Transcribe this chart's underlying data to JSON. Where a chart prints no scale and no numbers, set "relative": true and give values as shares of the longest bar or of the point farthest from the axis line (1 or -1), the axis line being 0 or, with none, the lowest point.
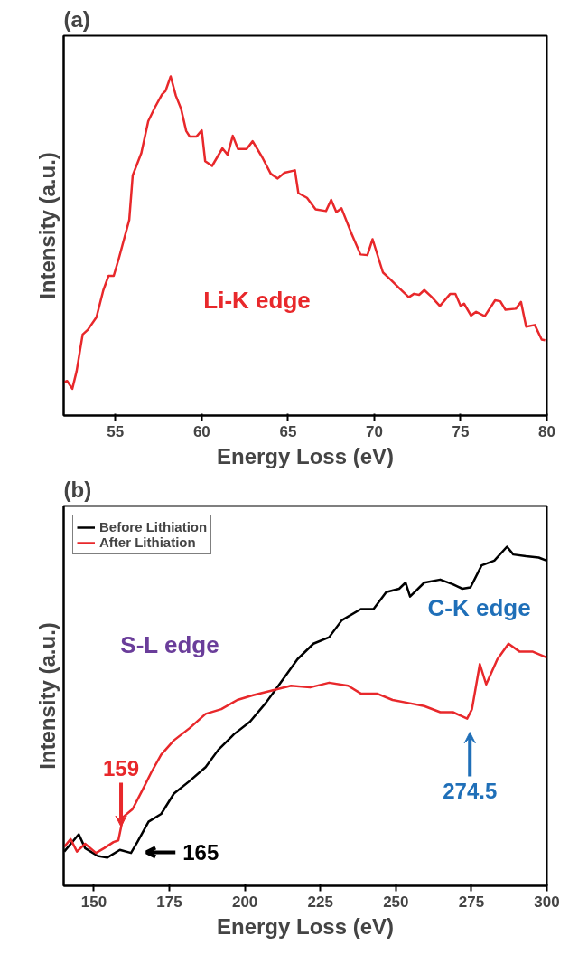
{
  "chart_data": [
    {
      "type": "line",
      "title": "(a)",
      "xlabel": "Energy Loss (eV)",
      "ylabel": "Intensity (a.u.)",
      "relative": true,
      "xlim": [
        52,
        80
      ],
      "xticks": [
        55,
        60,
        65,
        70,
        75,
        80
      ],
      "legend": false,
      "grid": false,
      "annotations": [
        "Li-K edge"
      ],
      "series": [
        {
          "color": "#e8282b",
          "x": [
            52.0,
            52.2,
            52.5,
            52.75,
            53.1,
            53.4,
            53.9,
            54.3,
            54.6,
            54.9,
            55.2,
            55.8,
            56.0,
            56.5,
            56.9,
            57.3,
            57.7,
            57.9,
            58.2,
            58.5,
            58.8,
            59.1,
            59.3,
            59.7,
            60.0,
            60.2,
            60.6,
            61.2,
            61.5,
            61.8,
            62.1,
            62.6,
            62.95,
            63.5,
            64.0,
            64.4,
            64.8,
            65.4,
            65.6,
            66.1,
            66.6,
            67.2,
            67.5,
            67.8,
            68.1,
            68.7,
            69.2,
            69.6,
            69.9,
            70.5,
            70.9,
            71.5,
            72.0,
            72.3,
            72.6,
            72.9,
            73.3,
            73.8,
            74.4,
            74.7,
            75.0,
            75.2,
            75.6,
            75.9,
            76.4,
            77.0,
            77.3,
            77.6,
            78.2,
            78.5,
            78.8,
            79.3,
            79.7,
            79.9
          ],
          "values": [
            0.098,
            0.102,
            0.079,
            0.131,
            0.239,
            0.253,
            0.29,
            0.37,
            0.412,
            0.412,
            0.464,
            0.577,
            0.708,
            0.774,
            0.868,
            0.91,
            0.947,
            0.957,
            1.0,
            0.943,
            0.905,
            0.839,
            0.823,
            0.823,
            0.841,
            0.75,
            0.736,
            0.788,
            0.769,
            0.825,
            0.786,
            0.786,
            0.809,
            0.762,
            0.713,
            0.699,
            0.716,
            0.723,
            0.656,
            0.642,
            0.608,
            0.603,
            0.636,
            0.6,
            0.611,
            0.534,
            0.475,
            0.473,
            0.52,
            0.422,
            0.403,
            0.373,
            0.349,
            0.359,
            0.356,
            0.37,
            0.351,
            0.323,
            0.359,
            0.359,
            0.323,
            0.33,
            0.295,
            0.306,
            0.293,
            0.34,
            0.337,
            0.312,
            0.315,
            0.335,
            0.262,
            0.267,
            0.224,
            0.222
          ]
        }
      ]
    },
    {
      "type": "line",
      "title": "(b)",
      "xlabel": "Energy Loss (eV)",
      "ylabel": "Intensity (a.u.)",
      "relative": true,
      "xlim": [
        140,
        300
      ],
      "xticks": [
        150,
        175,
        200,
        225,
        250,
        275,
        300
      ],
      "legend": "top left",
      "grid": false,
      "annotations": [
        "S-L edge",
        "C-K edge",
        {
          "text": "159",
          "x": 159,
          "y": 0.134
        },
        {
          "text": "165",
          "x": 165,
          "y": 0.129
        },
        {
          "text": "274.5",
          "x": 274.5,
          "y": 0.493
        }
      ],
      "series": [
        {
          "name": "Before Lithiation",
          "color": "#000000",
          "x": [
            140.2,
            145,
            147.1,
            151.3,
            154.4,
            158.6,
            162.3,
            164.4,
            168.1,
            172.3,
            176.5,
            181.7,
            187.0,
            191.2,
            196.4,
            201.7,
            206.9,
            211.1,
            217.4,
            222.7,
            227.9,
            232.1,
            238.4,
            242.6,
            246.8,
            251.1,
            253.2,
            254.7,
            259.4,
            264.7,
            268.9,
            272.0,
            274.7,
            278.4,
            282.6,
            286.8,
            288.9,
            293.1,
            297.3,
            299.9
          ],
          "values": [
            0.101,
            0.152,
            0.111,
            0.088,
            0.083,
            0.106,
            0.097,
            0.129,
            0.189,
            0.212,
            0.272,
            0.309,
            0.35,
            0.401,
            0.447,
            0.484,
            0.539,
            0.59,
            0.668,
            0.714,
            0.733,
            0.783,
            0.816,
            0.816,
            0.866,
            0.876,
            0.894,
            0.853,
            0.894,
            0.903,
            0.889,
            0.876,
            0.88,
            0.945,
            0.959,
            1.0,
            0.977,
            0.972,
            0.968,
            0.959
          ]
        },
        {
          "name": "After Lithiation",
          "color": "#e8282b",
          "x": [
            140.2,
            142.3,
            144.4,
            147.1,
            150.7,
            153.4,
            156.5,
            158.1,
            159.7,
            162.8,
            166.0,
            169.1,
            172.3,
            176.5,
            181.7,
            187.0,
            192.2,
            197.5,
            202.7,
            209.0,
            215.3,
            221.6,
            227.9,
            234.2,
            238.4,
            243.7,
            248.9,
            254.2,
            259.4,
            264.7,
            268.9,
            273.6,
            275.2,
            277.8,
            279.9,
            283.6,
            287.3,
            290.9,
            295.2,
            300.0
          ],
          "values": [
            0.115,
            0.138,
            0.101,
            0.124,
            0.097,
            0.111,
            0.129,
            0.134,
            0.203,
            0.226,
            0.281,
            0.336,
            0.387,
            0.429,
            0.465,
            0.507,
            0.521,
            0.548,
            0.562,
            0.576,
            0.59,
            0.585,
            0.599,
            0.59,
            0.567,
            0.567,
            0.548,
            0.539,
            0.53,
            0.512,
            0.512,
            0.493,
            0.521,
            0.654,
            0.594,
            0.668,
            0.714,
            0.691,
            0.691,
            0.673
          ]
        }
      ]
    }
  ]
}
